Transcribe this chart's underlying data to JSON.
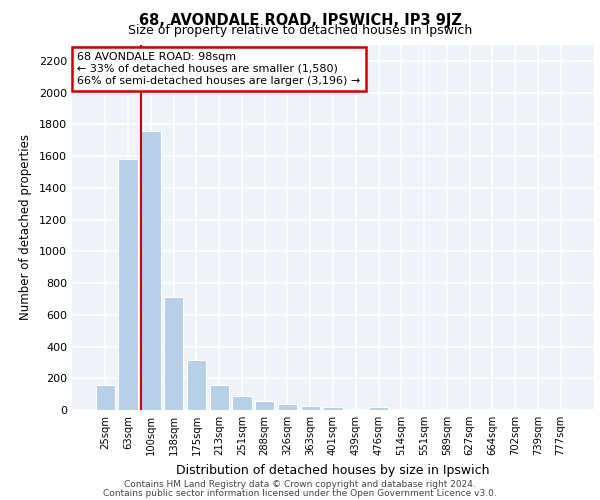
{
  "title_line1": "68, AVONDALE ROAD, IPSWICH, IP3 9JZ",
  "title_line2": "Size of property relative to detached houses in Ipswich",
  "xlabel": "Distribution of detached houses by size in Ipswich",
  "ylabel": "Number of detached properties",
  "categories": [
    "25sqm",
    "63sqm",
    "100sqm",
    "138sqm",
    "175sqm",
    "213sqm",
    "251sqm",
    "288sqm",
    "326sqm",
    "363sqm",
    "401sqm",
    "439sqm",
    "476sqm",
    "514sqm",
    "551sqm",
    "589sqm",
    "627sqm",
    "664sqm",
    "702sqm",
    "739sqm",
    "777sqm"
  ],
  "values": [
    160,
    1580,
    1760,
    710,
    315,
    160,
    90,
    55,
    35,
    25,
    20,
    0,
    20,
    0,
    0,
    0,
    0,
    0,
    0,
    0,
    0
  ],
  "bar_color": "#b8cfe8",
  "vline_color": "#cc0000",
  "annotation_text": "68 AVONDALE ROAD: 98sqm\n← 33% of detached houses are smaller (1,580)\n66% of semi-detached houses are larger (3,196) →",
  "annotation_box_color": "#cc0000",
  "ylim": [
    0,
    2300
  ],
  "yticks": [
    0,
    200,
    400,
    600,
    800,
    1000,
    1200,
    1400,
    1600,
    1800,
    2000,
    2200
  ],
  "background_color": "#eef2f9",
  "grid_color": "#ffffff",
  "footer_line1": "Contains HM Land Registry data © Crown copyright and database right 2024.",
  "footer_line2": "Contains public sector information licensed under the Open Government Licence v3.0."
}
